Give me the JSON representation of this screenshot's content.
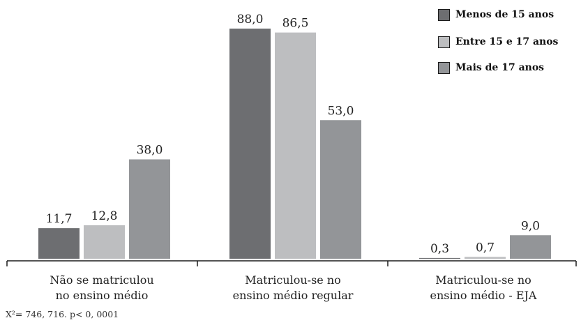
{
  "chart_data": {
    "type": "bar",
    "categories": [
      [
        "Não se matriculou",
        "no ensino médio"
      ],
      [
        "Matriculou-se no",
        "ensino médio regular"
      ],
      [
        "Matriculou-se no",
        "ensino médio - EJA"
      ]
    ],
    "series": [
      {
        "name": "Menos de 15 anos",
        "color": "#6d6e71",
        "values": [
          11.7,
          88.0,
          0.3
        ],
        "labels": [
          "11,7",
          "88,0",
          "0,3"
        ]
      },
      {
        "name": "Entre 15 e 17 anos",
        "color": "#bdbec0",
        "values": [
          12.8,
          86.5,
          0.7
        ],
        "labels": [
          "12,8",
          "86,5",
          "0,7"
        ]
      },
      {
        "name": "Mais de 17 anos",
        "color": "#939598",
        "values": [
          38.0,
          53.0,
          9.0
        ],
        "labels": [
          "38,0",
          "53,0",
          "9,0"
        ]
      }
    ],
    "ylim": [
      0,
      100
    ],
    "grid": false,
    "legend_position": "top-right",
    "footnote": "X²= 746, 716. p< 0, 0001"
  }
}
